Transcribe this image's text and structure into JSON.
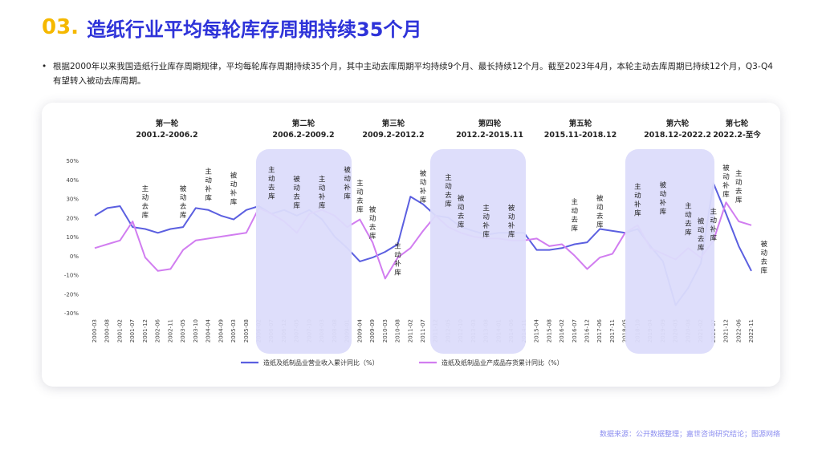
{
  "header": {
    "number": "03.",
    "title": "造纸行业平均每轮库存周期持续35个月"
  },
  "bullet": {
    "text": "根据2000年以来我国造纸行业库存周期规律，平均每轮库存周期持续35个月，其中主动去库周期平均持续9个月、最长持续12个月。截至2023年4月，本轮主动去库周期已持续12个月，Q3-Q4有望转入被动去库周期。"
  },
  "source": "数据来源：公开数据整理；嘉世咨询研究结论；图源网络",
  "colors": {
    "series1": "#5b5fe0",
    "series2": "#d17df0",
    "band": "#dcdcfb",
    "title_num": "#f5b800",
    "title_text": "#2e33d9"
  },
  "chart_data": {
    "type": "line",
    "y_ticks": [
      "50%",
      "40%",
      "30%",
      "20%",
      "10%",
      "0%",
      "-10%",
      "-20%",
      "-30%"
    ],
    "ylim": [
      -30,
      50
    ],
    "x_tick_labels": [
      "2000-03",
      "2000-08",
      "2001-02",
      "2001-07",
      "2001-12",
      "2002-06",
      "2002-11",
      "2003-05",
      "2003-10",
      "2004-04",
      "2004-09",
      "2005-03",
      "2005-08",
      "2006-02",
      "2006-07",
      "2006-12",
      "2007-05",
      "2007-10",
      "2008-03",
      "2008-08",
      "2009-01",
      "2009-04",
      "2009-09",
      "2010-03",
      "2010-08",
      "2011-02",
      "2011-07",
      "2011-12",
      "2012-05",
      "2012-10",
      "2013-03",
      "2013-08",
      "2014-01",
      "2014-06",
      "2014-11",
      "2015-04",
      "2015-08",
      "2016-02",
      "2016-07",
      "2016-12",
      "2017-06",
      "2017-11",
      "2018-05",
      "2018-10",
      "2019-04",
      "2019-09",
      "2020-03",
      "2020-08",
      "2021-02",
      "2021-07",
      "2021-12",
      "2022-06",
      "2022-11"
    ],
    "series": [
      {
        "name": "造纸及纸制品业营业收入累计同比（%）",
        "values": [
          21,
          25,
          26,
          15,
          14,
          12,
          14,
          15,
          25,
          24,
          21,
          19,
          24,
          26,
          22,
          24,
          21,
          24,
          19,
          10,
          4,
          -3,
          -1,
          2,
          6,
          31,
          27,
          21,
          20,
          15,
          13,
          11,
          12,
          12,
          12,
          3,
          3,
          4,
          6,
          7,
          14,
          13,
          12,
          14,
          5,
          -3,
          -26,
          -17,
          -4,
          38,
          22,
          5,
          -8
        ]
      },
      {
        "name": "造纸及纸制品业产成品存货累计同比（%）",
        "values": [
          4,
          6,
          8,
          18,
          -1,
          -8,
          -7,
          3,
          8,
          9,
          10,
          11,
          12,
          25,
          22,
          18,
          12,
          22,
          24,
          21,
          15,
          19,
          7,
          -12,
          -1,
          4,
          13,
          21,
          15,
          12,
          10,
          9,
          9,
          8,
          8,
          9,
          5,
          6,
          0,
          -7,
          -1,
          1,
          12,
          16,
          4,
          1,
          -2,
          4,
          -1,
          8,
          28,
          18,
          16
        ]
      }
    ],
    "cycles": [
      {
        "name": "第一轮",
        "period": "2001.2-2006.2"
      },
      {
        "name": "第二轮",
        "period": "2006.2-2009.2"
      },
      {
        "name": "第三轮",
        "period": "2009.2-2012.2"
      },
      {
        "name": "第四轮",
        "period": "2012.2-2015.11"
      },
      {
        "name": "第五轮",
        "period": "2015.11-2018.12"
      },
      {
        "name": "第六轮",
        "period": "2018.12-2022.2"
      },
      {
        "name": "第七轮",
        "period": "2022.2-至今"
      }
    ],
    "phase_annotations": [
      {
        "text": "主动去库",
        "x_index": 4,
        "y_value": 34
      },
      {
        "text": "被动去库",
        "x_index": 7,
        "y_value": 34
      },
      {
        "text": "主动补库",
        "x_index": 9,
        "y_value": 43
      },
      {
        "text": "被动补库",
        "x_index": 11,
        "y_value": 41
      },
      {
        "text": "主动去库",
        "x_index": 14,
        "y_value": 44
      },
      {
        "text": "被动去库",
        "x_index": 16,
        "y_value": 39
      },
      {
        "text": "主动补库",
        "x_index": 18,
        "y_value": 39
      },
      {
        "text": "被动补库",
        "x_index": 20,
        "y_value": 44
      },
      {
        "text": "主动去库",
        "x_index": 21,
        "y_value": 37
      },
      {
        "text": "被动去库",
        "x_index": 22,
        "y_value": 23
      },
      {
        "text": "主动补库",
        "x_index": 24,
        "y_value": 4
      },
      {
        "text": "被动补库",
        "x_index": 26,
        "y_value": 42
      },
      {
        "text": "主动去库",
        "x_index": 28,
        "y_value": 40
      },
      {
        "text": "被动去库",
        "x_index": 29,
        "y_value": 29
      },
      {
        "text": "主动补库",
        "x_index": 31,
        "y_value": 24
      },
      {
        "text": "被动补库",
        "x_index": 33,
        "y_value": 24
      },
      {
        "text": "主动去库",
        "x_index": 38,
        "y_value": 27
      },
      {
        "text": "被动去库",
        "x_index": 40,
        "y_value": 29
      },
      {
        "text": "主动补库",
        "x_index": 43,
        "y_value": 35
      },
      {
        "text": "被动补库",
        "x_index": 45,
        "y_value": 36
      },
      {
        "text": "主动去库",
        "x_index": 47,
        "y_value": 25
      },
      {
        "text": "被动去库",
        "x_index": 48,
        "y_value": 17
      },
      {
        "text": "主动补库",
        "x_index": 49,
        "y_value": 22
      },
      {
        "text": "被动补库",
        "x_index": 50,
        "y_value": 45
      },
      {
        "text": "主动去库",
        "x_index": 51,
        "y_value": 42
      },
      {
        "text": "被动去库",
        "x_index": 53,
        "y_value": 5
      }
    ]
  }
}
